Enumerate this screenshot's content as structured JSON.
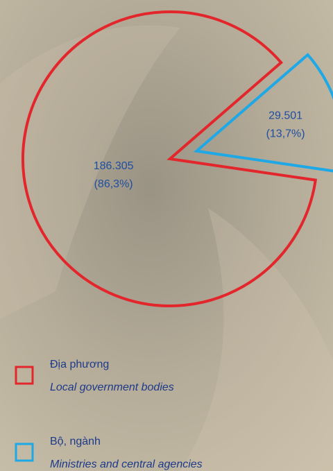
{
  "chart_data": {
    "type": "pie",
    "series": [
      {
        "name": "Địa phương",
        "name_en": "Local government bodies",
        "color": "#e3262b",
        "value": 186305,
        "value_label": "186.305",
        "percent": 86.3,
        "percent_label": "(86,3%)"
      },
      {
        "name": "Bộ, ngành",
        "name_en": "Ministries and central agencies",
        "color": "#1ea8e6",
        "value": 29501,
        "value_label": "29.501",
        "percent": 13.7,
        "percent_label": "(13,7%)"
      }
    ]
  }
}
